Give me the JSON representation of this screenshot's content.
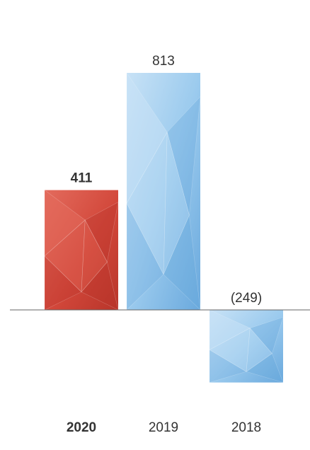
{
  "chart_data": {
    "type": "bar",
    "categories": [
      "2020",
      "2019",
      "2018"
    ],
    "values": [
      411,
      813,
      -249
    ],
    "value_labels": [
      "411",
      "813",
      "(249)"
    ],
    "highlight_category": "2020",
    "colors": {
      "highlight": "#d2473a",
      "highlight_light": "#e36b5d",
      "highlight_dark": "#b8352a",
      "normal": "#9ccbee",
      "normal_light": "#c8e2f6",
      "normal_dark": "#6aa9dd",
      "baseline": "#666666",
      "text": "#333333"
    },
    "grid": false,
    "ylim": [
      -300,
      850
    ]
  }
}
